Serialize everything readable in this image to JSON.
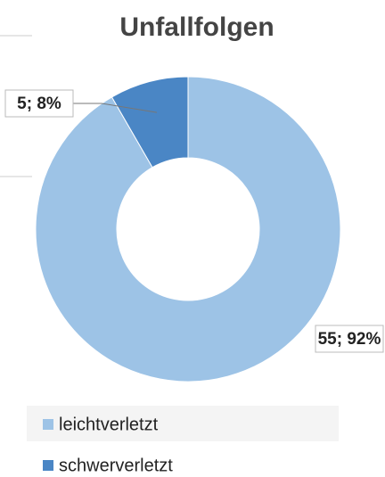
{
  "chart_data": {
    "type": "donut",
    "title": "Unfallfolgen",
    "categories": [
      "leichtverletzt",
      "schwerverletzt"
    ],
    "values": [
      55,
      5
    ],
    "value_labels": [
      "55; 92%",
      "5; 8%"
    ],
    "colors": [
      "#9dc3e6",
      "#4a86c5"
    ],
    "legend": "bottom"
  }
}
